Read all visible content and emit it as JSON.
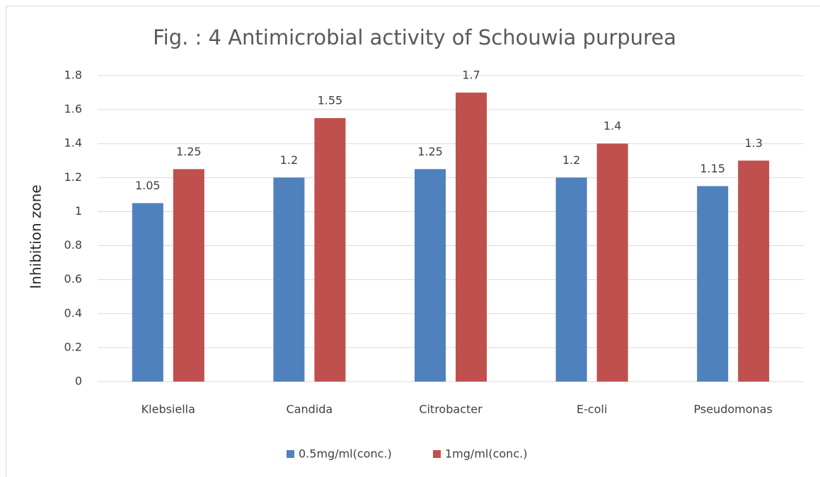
{
  "chart_data": {
    "type": "bar",
    "title": "Fig. : 4 Antimicrobial activity of Schouwia purpurea",
    "y_label": "Inhibition zone",
    "categories": [
      "Klebsiella",
      "Candida",
      "Citrobacter",
      "E-coli",
      "Pseudomonas"
    ],
    "series": [
      {
        "name": "0.5mg/ml(conc.)",
        "color": "#4f81bd",
        "values": [
          1.05,
          1.2,
          1.25,
          1.2,
          1.15
        ]
      },
      {
        "name": "1mg/ml(conc.)",
        "color": "#c0504d",
        "values": [
          1.25,
          1.55,
          1.7,
          1.4,
          1.3
        ]
      }
    ],
    "ylim": [
      0,
      1.8
    ],
    "yticks": [
      0,
      0.2,
      0.4,
      0.6,
      0.8,
      1,
      1.2,
      1.4,
      1.6,
      1.8
    ],
    "grid": true,
    "legend": "bottom"
  }
}
